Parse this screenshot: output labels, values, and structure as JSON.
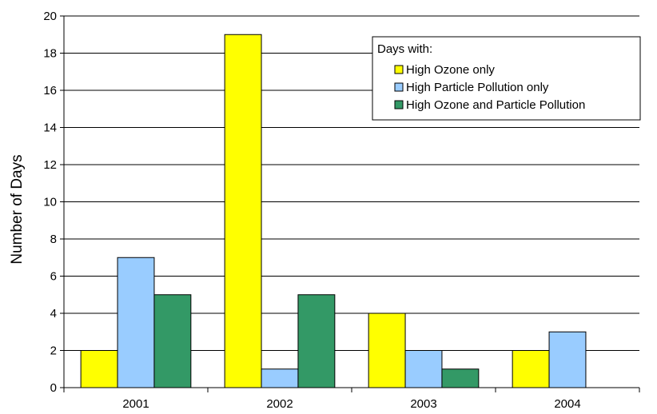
{
  "chart_data": {
    "type": "bar",
    "title": "",
    "xlabel": "",
    "ylabel": "Number of Days",
    "ylim": [
      0,
      20
    ],
    "yticks": [
      0,
      2,
      4,
      6,
      8,
      10,
      12,
      14,
      16,
      18,
      20
    ],
    "grid": "horizontal",
    "legend_position": "top-right",
    "legend_title": "Days with:",
    "categories": [
      "2001",
      "2002",
      "2003",
      "2004"
    ],
    "series": [
      {
        "name": "High Ozone only",
        "color": "#ffff00",
        "values": [
          2,
          19,
          4,
          2
        ]
      },
      {
        "name": "High Particle Pollution only",
        "color": "#99ccff",
        "values": [
          7,
          1,
          2,
          3
        ]
      },
      {
        "name": "High Ozone and Particle Pollution",
        "color": "#339966",
        "values": [
          5,
          5,
          1,
          0
        ]
      }
    ]
  }
}
